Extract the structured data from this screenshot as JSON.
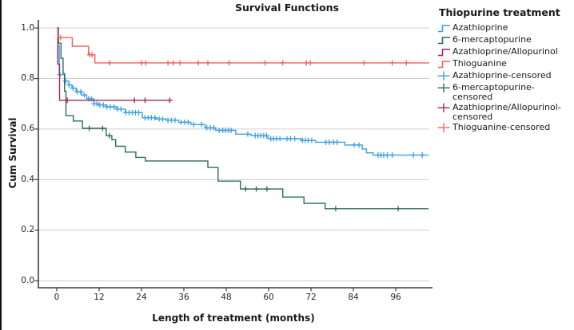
{
  "figure": {
    "title": "Survival Functions"
  },
  "x_axis": {
    "label": "Length of treatment (months)",
    "tick_labels": [
      "0",
      "12",
      "24",
      "36",
      "48",
      "60",
      "72",
      "84",
      "96"
    ]
  },
  "y_axis": {
    "label": "Cum Survival",
    "tick_labels": [
      "0.0",
      "0.2",
      "0.4",
      "0.6",
      "0.8",
      "1.0"
    ]
  },
  "legend": {
    "title": "Thiopurine treatment",
    "items": [
      {
        "label": "Azathioprine",
        "type": "line",
        "color": "#3f9fe6"
      },
      {
        "label": "6-mercaptopurine",
        "type": "line",
        "color": "#2b6c5f"
      },
      {
        "label": "Azathioprine/Allopurinol",
        "type": "line",
        "color": "#a02a5a"
      },
      {
        "label": "Thioguanine",
        "type": "line",
        "color": "#f2605f"
      },
      {
        "label": "Azathioprine-censored",
        "type": "censor",
        "color": "#3f9fe6"
      },
      {
        "label": "6-mercaptopurine-censored",
        "type": "censor",
        "color": "#2b6c5f"
      },
      {
        "label": "Azathioprine/Allopurinol-censored",
        "type": "censor",
        "color": "#a02a5a"
      },
      {
        "label": "Thioguanine-censored",
        "type": "censor",
        "color": "#f2605f"
      }
    ]
  },
  "chart_data": {
    "type": "line",
    "subtype": "kaplan-meier-step",
    "title": "Survival Functions",
    "xlabel": "Length of treatment (months)",
    "ylabel": "Cum Survival",
    "xlim": [
      -5.2,
      105.5
    ],
    "ylim": [
      -0.028,
      1.032
    ],
    "x_ticks": [
      0,
      12,
      24,
      36,
      48,
      60,
      72,
      84,
      96
    ],
    "y_ticks": [
      0.0,
      0.2,
      0.4,
      0.6,
      0.8,
      1.0
    ],
    "grid": "horizontal-gridlines",
    "legend_position": "right",
    "axis_color": "#3f3f3f",
    "grid_color": "#cfcfcf",
    "series": [
      {
        "name": "Azathioprine",
        "color": "#3f9fe6",
        "x": [
          0,
          0.4,
          0.7,
          2.3,
          3.4,
          4.3,
          5.5,
          7,
          8.5,
          10.5,
          11.8,
          14,
          17,
          19.4,
          24.2,
          28,
          31,
          34.5,
          38,
          42,
          45,
          50.7,
          55,
          59.8,
          69.2,
          73.3,
          81.6,
          86.5,
          87.7,
          89.6,
          105.3
        ],
        "y": [
          1.0,
          0.93,
          0.815,
          0.79,
          0.775,
          0.762,
          0.748,
          0.735,
          0.72,
          0.7,
          0.695,
          0.688,
          0.679,
          0.665,
          0.645,
          0.64,
          0.635,
          0.627,
          0.618,
          0.605,
          0.595,
          0.58,
          0.574,
          0.562,
          0.555,
          0.548,
          0.537,
          0.521,
          0.506,
          0.497,
          0.497
        ],
        "censor_x": [
          0.9,
          2.5,
          3.5,
          4.6,
          5.8,
          6.8,
          7.8,
          9,
          9.8,
          10.6,
          11.4,
          12.2,
          13.2,
          14.2,
          15.2,
          16.2,
          17.2,
          18.2,
          19.6,
          20.5,
          21.4,
          22.3,
          23.2,
          25,
          25.9,
          26.8,
          27.8,
          29,
          30,
          31.5,
          32.5,
          33.5,
          35.2,
          36.2,
          37.2,
          38.8,
          41,
          42.5,
          43.5,
          44.5,
          46,
          47,
          47.8,
          48.6,
          49.4,
          54.1,
          56.2,
          57,
          57.8,
          58.6,
          59.4,
          60.6,
          61.4,
          62.2,
          63.2,
          65.2,
          66.2,
          67.4,
          69.6,
          70.4,
          71.2,
          72.2,
          76.2,
          77.2,
          78.4,
          79.4,
          84.2,
          85.6,
          91,
          91.8,
          92.6,
          93.6,
          95,
          101,
          103.5
        ]
      },
      {
        "name": "6-mercaptopurine",
        "color": "#2b6c5f",
        "x": [
          0,
          0.5,
          1.2,
          1.8,
          2.2,
          2.6,
          4.7,
          7.3,
          14,
          15.6,
          16.7,
          19.4,
          22.4,
          25.1,
          42.8,
          45.7,
          52,
          64,
          70,
          76,
          105.3
        ],
        "y": [
          1.0,
          0.94,
          0.88,
          0.82,
          0.75,
          0.653,
          0.632,
          0.603,
          0.574,
          0.558,
          0.532,
          0.509,
          0.488,
          0.474,
          0.448,
          0.394,
          0.363,
          0.331,
          0.306,
          0.285,
          0.285
        ],
        "censor_x": [
          9.2,
          13,
          14.9,
          53.5,
          56.5,
          59.5,
          79,
          96.7
        ]
      },
      {
        "name": "Azathioprine/Allopurinol",
        "color": "#a02a5a",
        "x": [
          0,
          0.3,
          0.8,
          32.2
        ],
        "y": [
          1.0,
          0.857,
          0.714,
          0.714
        ],
        "censor_x": [
          3,
          22,
          25,
          32
        ]
      },
      {
        "name": "Thioguanine",
        "color": "#f2605f",
        "x": [
          0,
          0.3,
          4.4,
          9,
          10.8,
          105.5
        ],
        "y": [
          1.0,
          0.962,
          0.928,
          0.894,
          0.862,
          0.862
        ],
        "censor_x": [
          1.1,
          9.3,
          10,
          15,
          24,
          25.2,
          31.5,
          33,
          34.9,
          40.1,
          42.8,
          48.8,
          59,
          64,
          70.7,
          71.8,
          87,
          95,
          99
        ]
      }
    ]
  }
}
